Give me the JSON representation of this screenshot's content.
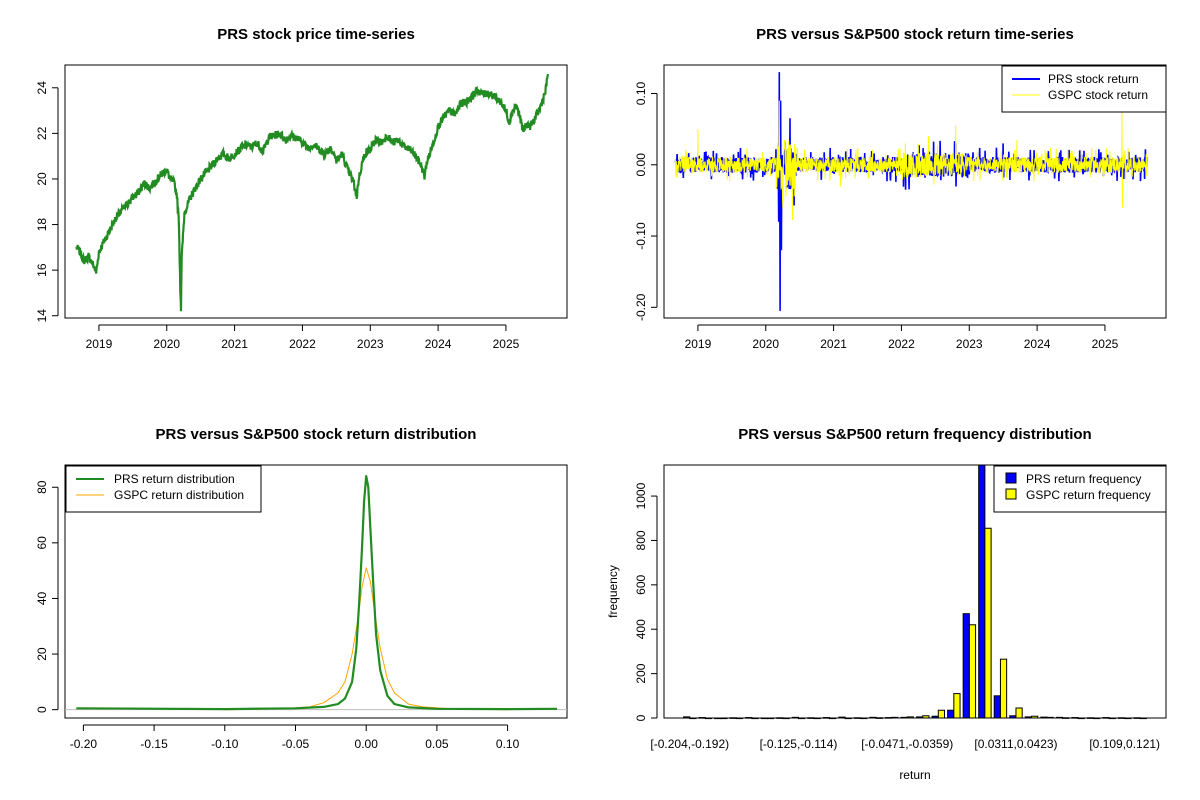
{
  "colors": {
    "prs_price": "#228B22",
    "prs_return": "#0000FF",
    "gspc_return": "#FFFF00",
    "prs_density": "#228B22",
    "gspc_density": "#FFA500",
    "prs_bar": "#0000FF",
    "gspc_bar": "#FFFF00"
  },
  "chart_data": [
    {
      "id": "price",
      "type": "line",
      "title": "PRS stock price time-series",
      "x_ticks": [
        "2019",
        "2020",
        "2021",
        "2022",
        "2023",
        "2024",
        "2025"
      ],
      "x_tick_values": [
        2019,
        2020,
        2021,
        2022,
        2023,
        2024,
        2025
      ],
      "y_ticks": [
        "14",
        "16",
        "18",
        "20",
        "22",
        "24"
      ],
      "y_tick_values": [
        14,
        16,
        18,
        20,
        22,
        24
      ],
      "xlim": [
        2018.5,
        2025.9
      ],
      "ylim": [
        13.9,
        25.0
      ],
      "series": [
        {
          "x": [
            2018.67,
            2018.72,
            2018.78,
            2018.85,
            2018.92,
            2018.96,
            2019.0,
            2019.08,
            2019.17,
            2019.25,
            2019.33,
            2019.42,
            2019.5,
            2019.58,
            2019.67,
            2019.75,
            2019.83,
            2019.92,
            2020.0,
            2020.05,
            2020.1,
            2020.15,
            2020.18,
            2020.2,
            2020.21,
            2020.22,
            2020.24,
            2020.26,
            2020.3,
            2020.35,
            2020.42,
            2020.5,
            2020.58,
            2020.67,
            2020.75,
            2020.83,
            2020.92,
            2021.0,
            2021.08,
            2021.17,
            2021.25,
            2021.33,
            2021.42,
            2021.5,
            2021.58,
            2021.67,
            2021.75,
            2021.83,
            2021.92,
            2022.0,
            2022.08,
            2022.17,
            2022.25,
            2022.33,
            2022.42,
            2022.5,
            2022.58,
            2022.67,
            2022.75,
            2022.8,
            2022.83,
            2022.88,
            2022.92,
            2023.0,
            2023.08,
            2023.17,
            2023.25,
            2023.33,
            2023.42,
            2023.5,
            2023.58,
            2023.67,
            2023.75,
            2023.8,
            2023.83,
            2023.92,
            2024.0,
            2024.08,
            2024.17,
            2024.25,
            2024.33,
            2024.42,
            2024.5,
            2024.58,
            2024.67,
            2024.75,
            2024.83,
            2024.92,
            2025.0,
            2025.05,
            2025.1,
            2025.15,
            2025.2,
            2025.25,
            2025.3,
            2025.35,
            2025.42,
            2025.5,
            2025.58,
            2025.62
          ],
          "y": [
            17.0,
            16.8,
            16.4,
            16.6,
            16.2,
            15.9,
            16.8,
            17.3,
            17.8,
            18.3,
            18.6,
            18.9,
            19.2,
            19.4,
            19.8,
            19.6,
            19.9,
            20.2,
            20.4,
            20.0,
            19.9,
            19.3,
            18.0,
            15.2,
            14.3,
            16.5,
            17.5,
            18.5,
            18.8,
            19.2,
            19.6,
            20.0,
            20.3,
            20.6,
            20.9,
            21.1,
            20.9,
            21.1,
            21.3,
            21.5,
            21.4,
            21.6,
            21.2,
            21.8,
            21.9,
            22.0,
            21.7,
            21.9,
            21.8,
            21.6,
            21.4,
            21.5,
            21.3,
            21.1,
            21.4,
            20.8,
            21.1,
            20.4,
            19.9,
            19.2,
            20.0,
            20.7,
            21.1,
            21.3,
            21.7,
            21.6,
            21.9,
            21.6,
            21.7,
            21.4,
            21.3,
            21.0,
            20.6,
            20.1,
            20.7,
            21.5,
            22.3,
            22.7,
            23.0,
            22.8,
            23.3,
            23.4,
            23.6,
            23.9,
            23.7,
            23.8,
            23.6,
            23.4,
            23.0,
            22.5,
            23.0,
            23.2,
            22.8,
            22.1,
            22.4,
            22.3,
            22.6,
            23.1,
            23.8,
            24.6
          ]
        }
      ]
    },
    {
      "id": "returns",
      "type": "line",
      "title": "PRS versus S&P500 stock return time-series",
      "x_ticks": [
        "2019",
        "2020",
        "2021",
        "2022",
        "2023",
        "2024",
        "2025"
      ],
      "x_tick_values": [
        2019,
        2020,
        2021,
        2022,
        2023,
        2024,
        2025
      ],
      "y_ticks": [
        "-0.20",
        "-0.10",
        "0.00",
        "0.10"
      ],
      "y_tick_values": [
        -0.2,
        -0.1,
        0.0,
        0.1
      ],
      "xlim": [
        2018.5,
        2025.9
      ],
      "ylim": [
        -0.215,
        0.14
      ],
      "legend": [
        "PRS stock return",
        "GSPC stock return"
      ],
      "legend_position": "top-right",
      "prs_spikes": [
        [
          2020.2,
          0.13
        ],
        [
          2020.21,
          -0.205
        ],
        [
          2020.19,
          -0.08
        ],
        [
          2020.22,
          0.09
        ],
        [
          2020.23,
          -0.12
        ],
        [
          2022.8,
          0.03
        ],
        [
          2023.5,
          0.03
        ],
        [
          2025.28,
          -0.02
        ]
      ],
      "gspc_spikes": [
        [
          2019.0,
          0.05
        ],
        [
          2020.2,
          0.09
        ],
        [
          2020.25,
          -0.06
        ],
        [
          2020.3,
          -0.045
        ],
        [
          2021.1,
          -0.03
        ],
        [
          2022.4,
          0.04
        ],
        [
          2022.8,
          0.055
        ],
        [
          2025.25,
          0.075
        ],
        [
          2025.26,
          -0.06
        ],
        [
          2023.7,
          0.035
        ]
      ]
    },
    {
      "id": "density",
      "type": "line",
      "title": "PRS versus S&P500 stock return distribution",
      "x_ticks": [
        "-0.20",
        "-0.15",
        "-0.10",
        "-0.05",
        "0.00",
        "0.05",
        "0.10"
      ],
      "x_tick_values": [
        -0.2,
        -0.15,
        -0.1,
        -0.05,
        0.0,
        0.05,
        0.1
      ],
      "y_ticks": [
        "0",
        "20",
        "40",
        "60",
        "80"
      ],
      "y_tick_values": [
        0,
        20,
        40,
        60,
        80
      ],
      "xlim": [
        -0.213,
        0.142
      ],
      "ylim": [
        -3.0,
        88.0
      ],
      "legend": [
        "PRS return distribution",
        "GSPC return distribution"
      ],
      "legend_position": "top-left",
      "series": [
        {
          "name": "PRS return distribution",
          "x": [
            -0.205,
            -0.1,
            -0.05,
            -0.03,
            -0.02,
            -0.015,
            -0.01,
            -0.007,
            -0.005,
            -0.003,
            -0.0015,
            0.0,
            0.0015,
            0.003,
            0.005,
            0.007,
            0.01,
            0.015,
            0.02,
            0.03,
            0.05,
            0.1,
            0.135
          ],
          "y": [
            0.5,
            0.2,
            0.5,
            1.0,
            2.0,
            4.0,
            10.0,
            22.0,
            38.0,
            58.0,
            75.0,
            84.0,
            80.0,
            65.0,
            45.0,
            27.0,
            14.0,
            5.0,
            2.0,
            0.8,
            0.3,
            0.2,
            0.3
          ]
        },
        {
          "name": "GSPC return distribution",
          "x": [
            -0.1,
            -0.06,
            -0.04,
            -0.03,
            -0.02,
            -0.015,
            -0.01,
            -0.006,
            -0.003,
            0.0,
            0.003,
            0.006,
            0.01,
            0.015,
            0.02,
            0.03,
            0.04,
            0.06,
            0.1
          ],
          "y": [
            0.0,
            0.3,
            1.0,
            2.5,
            6.0,
            10.0,
            20.0,
            32.0,
            44.0,
            51.0,
            46.0,
            35.0,
            22.0,
            11.0,
            6.0,
            2.0,
            1.0,
            0.3,
            0.0
          ]
        }
      ]
    },
    {
      "id": "histogram",
      "type": "bar",
      "title": "PRS versus S&P500 return frequency distribution",
      "xlabel": "return",
      "ylabel": "frequency",
      "x_ticks": [
        "[-0.204,-0.192)",
        "[-0.125,-0.114)",
        "[-0.0471,-0.0359)",
        "[0.0311,0.0423)",
        "[0.109,0.121)"
      ],
      "x_tick_bins": [
        0,
        7,
        14,
        21,
        28
      ],
      "y_ticks": [
        "0",
        "200",
        "400",
        "600",
        "800",
        "1000"
      ],
      "y_tick_values": [
        0,
        200,
        400,
        600,
        800,
        1000
      ],
      "ylim": [
        0,
        1140
      ],
      "legend": [
        "PRS return frequency",
        "GSPC return frequency"
      ],
      "legend_position": "top-right",
      "series": [
        {
          "name": "PRS return frequency",
          "values": [
            5,
            2,
            0,
            1,
            2,
            0,
            1,
            3,
            1,
            2,
            4,
            1,
            3,
            2,
            3,
            5,
            8,
            35,
            470,
            1140,
            100,
            10,
            5,
            4,
            3,
            2,
            1,
            2,
            1,
            1
          ]
        },
        {
          "name": "GSPC return frequency",
          "values": [
            0,
            0,
            0,
            0,
            0,
            0,
            0,
            0,
            0,
            0,
            0,
            0,
            1,
            3,
            5,
            10,
            35,
            110,
            420,
            855,
            265,
            45,
            8,
            3,
            1,
            0,
            0,
            0,
            0,
            0
          ]
        }
      ]
    }
  ]
}
